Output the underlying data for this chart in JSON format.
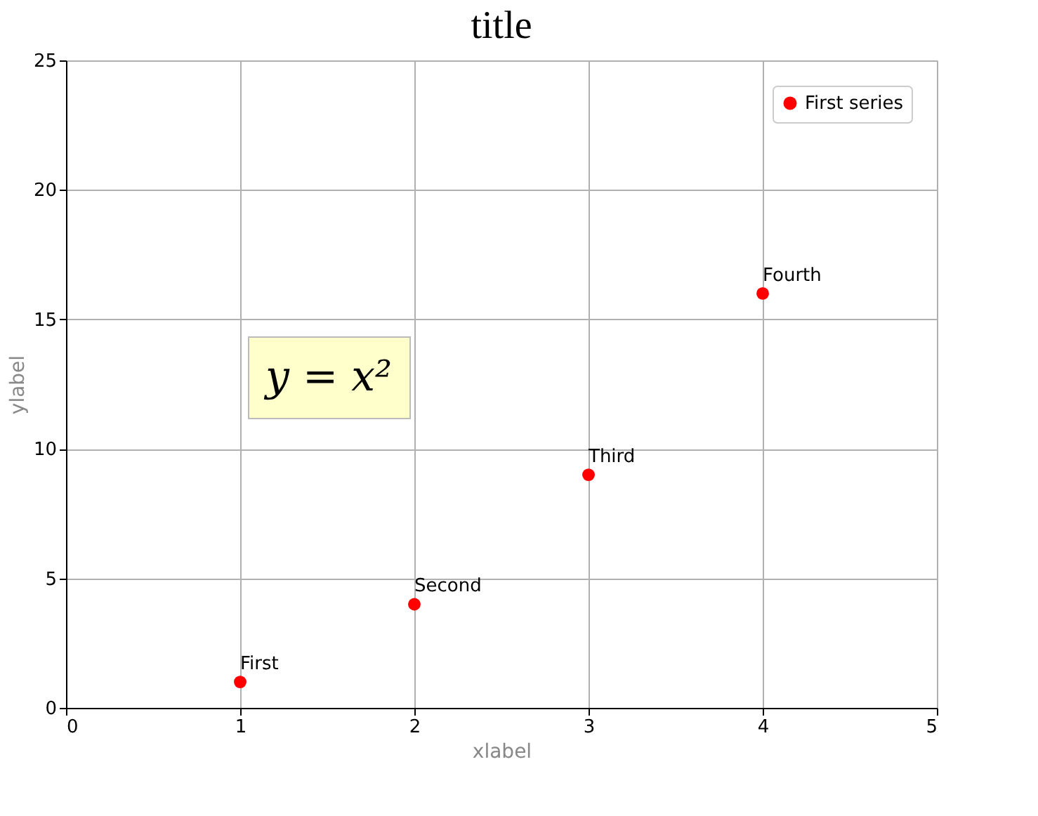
{
  "chart_data": {
    "type": "scatter",
    "title": "title",
    "xlabel": "xlabel",
    "ylabel": "ylabel",
    "x": [
      1,
      2,
      3,
      4
    ],
    "series": [
      {
        "name": "First series",
        "color": "#ff0000",
        "values": [
          1,
          4,
          9,
          16
        ]
      }
    ],
    "annotations": [
      {
        "text": "First",
        "x": 1,
        "y": 1
      },
      {
        "text": "Second",
        "x": 2,
        "y": 4
      },
      {
        "text": "Third",
        "x": 3,
        "y": 9
      },
      {
        "text": "Fourth",
        "x": 4,
        "y": 16
      },
      "y = x²"
    ],
    "xlim": [
      0,
      5
    ],
    "ylim": [
      0,
      25
    ],
    "xticks": [
      0,
      1,
      2,
      3,
      4,
      5
    ],
    "yticks": [
      0,
      5,
      10,
      15,
      20,
      25
    ],
    "grid": true,
    "legend": "top right",
    "marker": "circle"
  }
}
